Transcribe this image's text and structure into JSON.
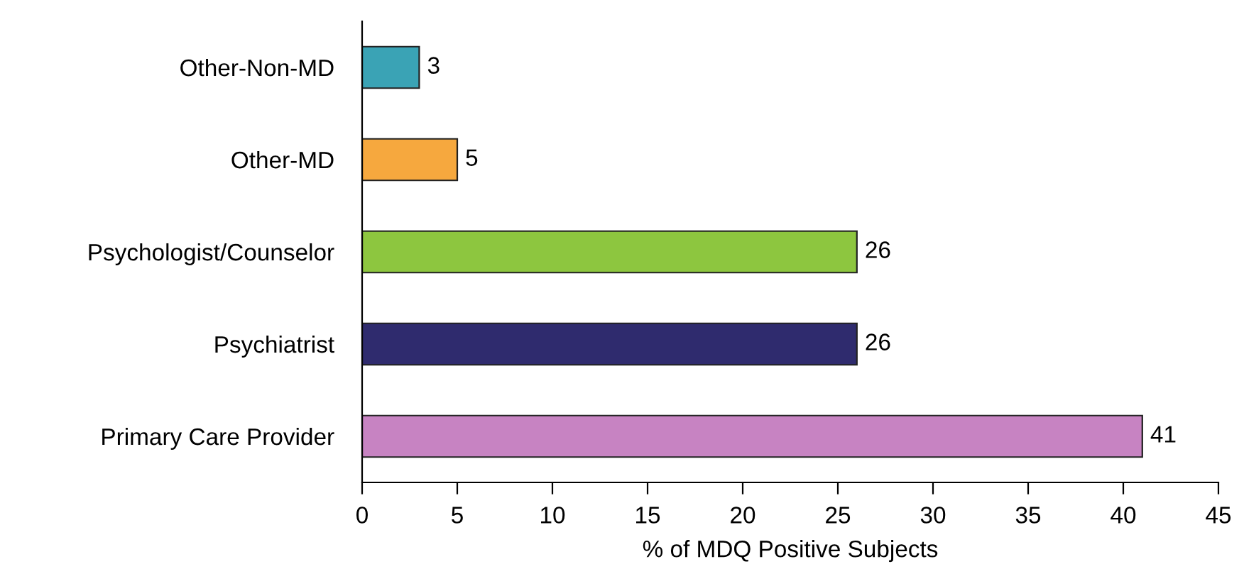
{
  "chart_data": {
    "type": "bar",
    "orientation": "horizontal",
    "xlabel": "% of MDQ Positive Subjects",
    "categories": [
      "Other-Non-MD",
      "Other-MD",
      "Psychologist/Counselor",
      "Psychiatrist",
      "Primary Care Provider"
    ],
    "values": [
      3,
      5,
      26,
      26,
      41
    ],
    "colors": [
      "#3aa3b5",
      "#f6a83e",
      "#8dc63f",
      "#2f2b6e",
      "#c783c2"
    ],
    "xlim": [
      0,
      45
    ],
    "xticks": [
      0,
      5,
      10,
      15,
      20,
      25,
      30,
      35,
      40,
      45
    ],
    "data_labels": true,
    "grid": false,
    "legend": false
  }
}
